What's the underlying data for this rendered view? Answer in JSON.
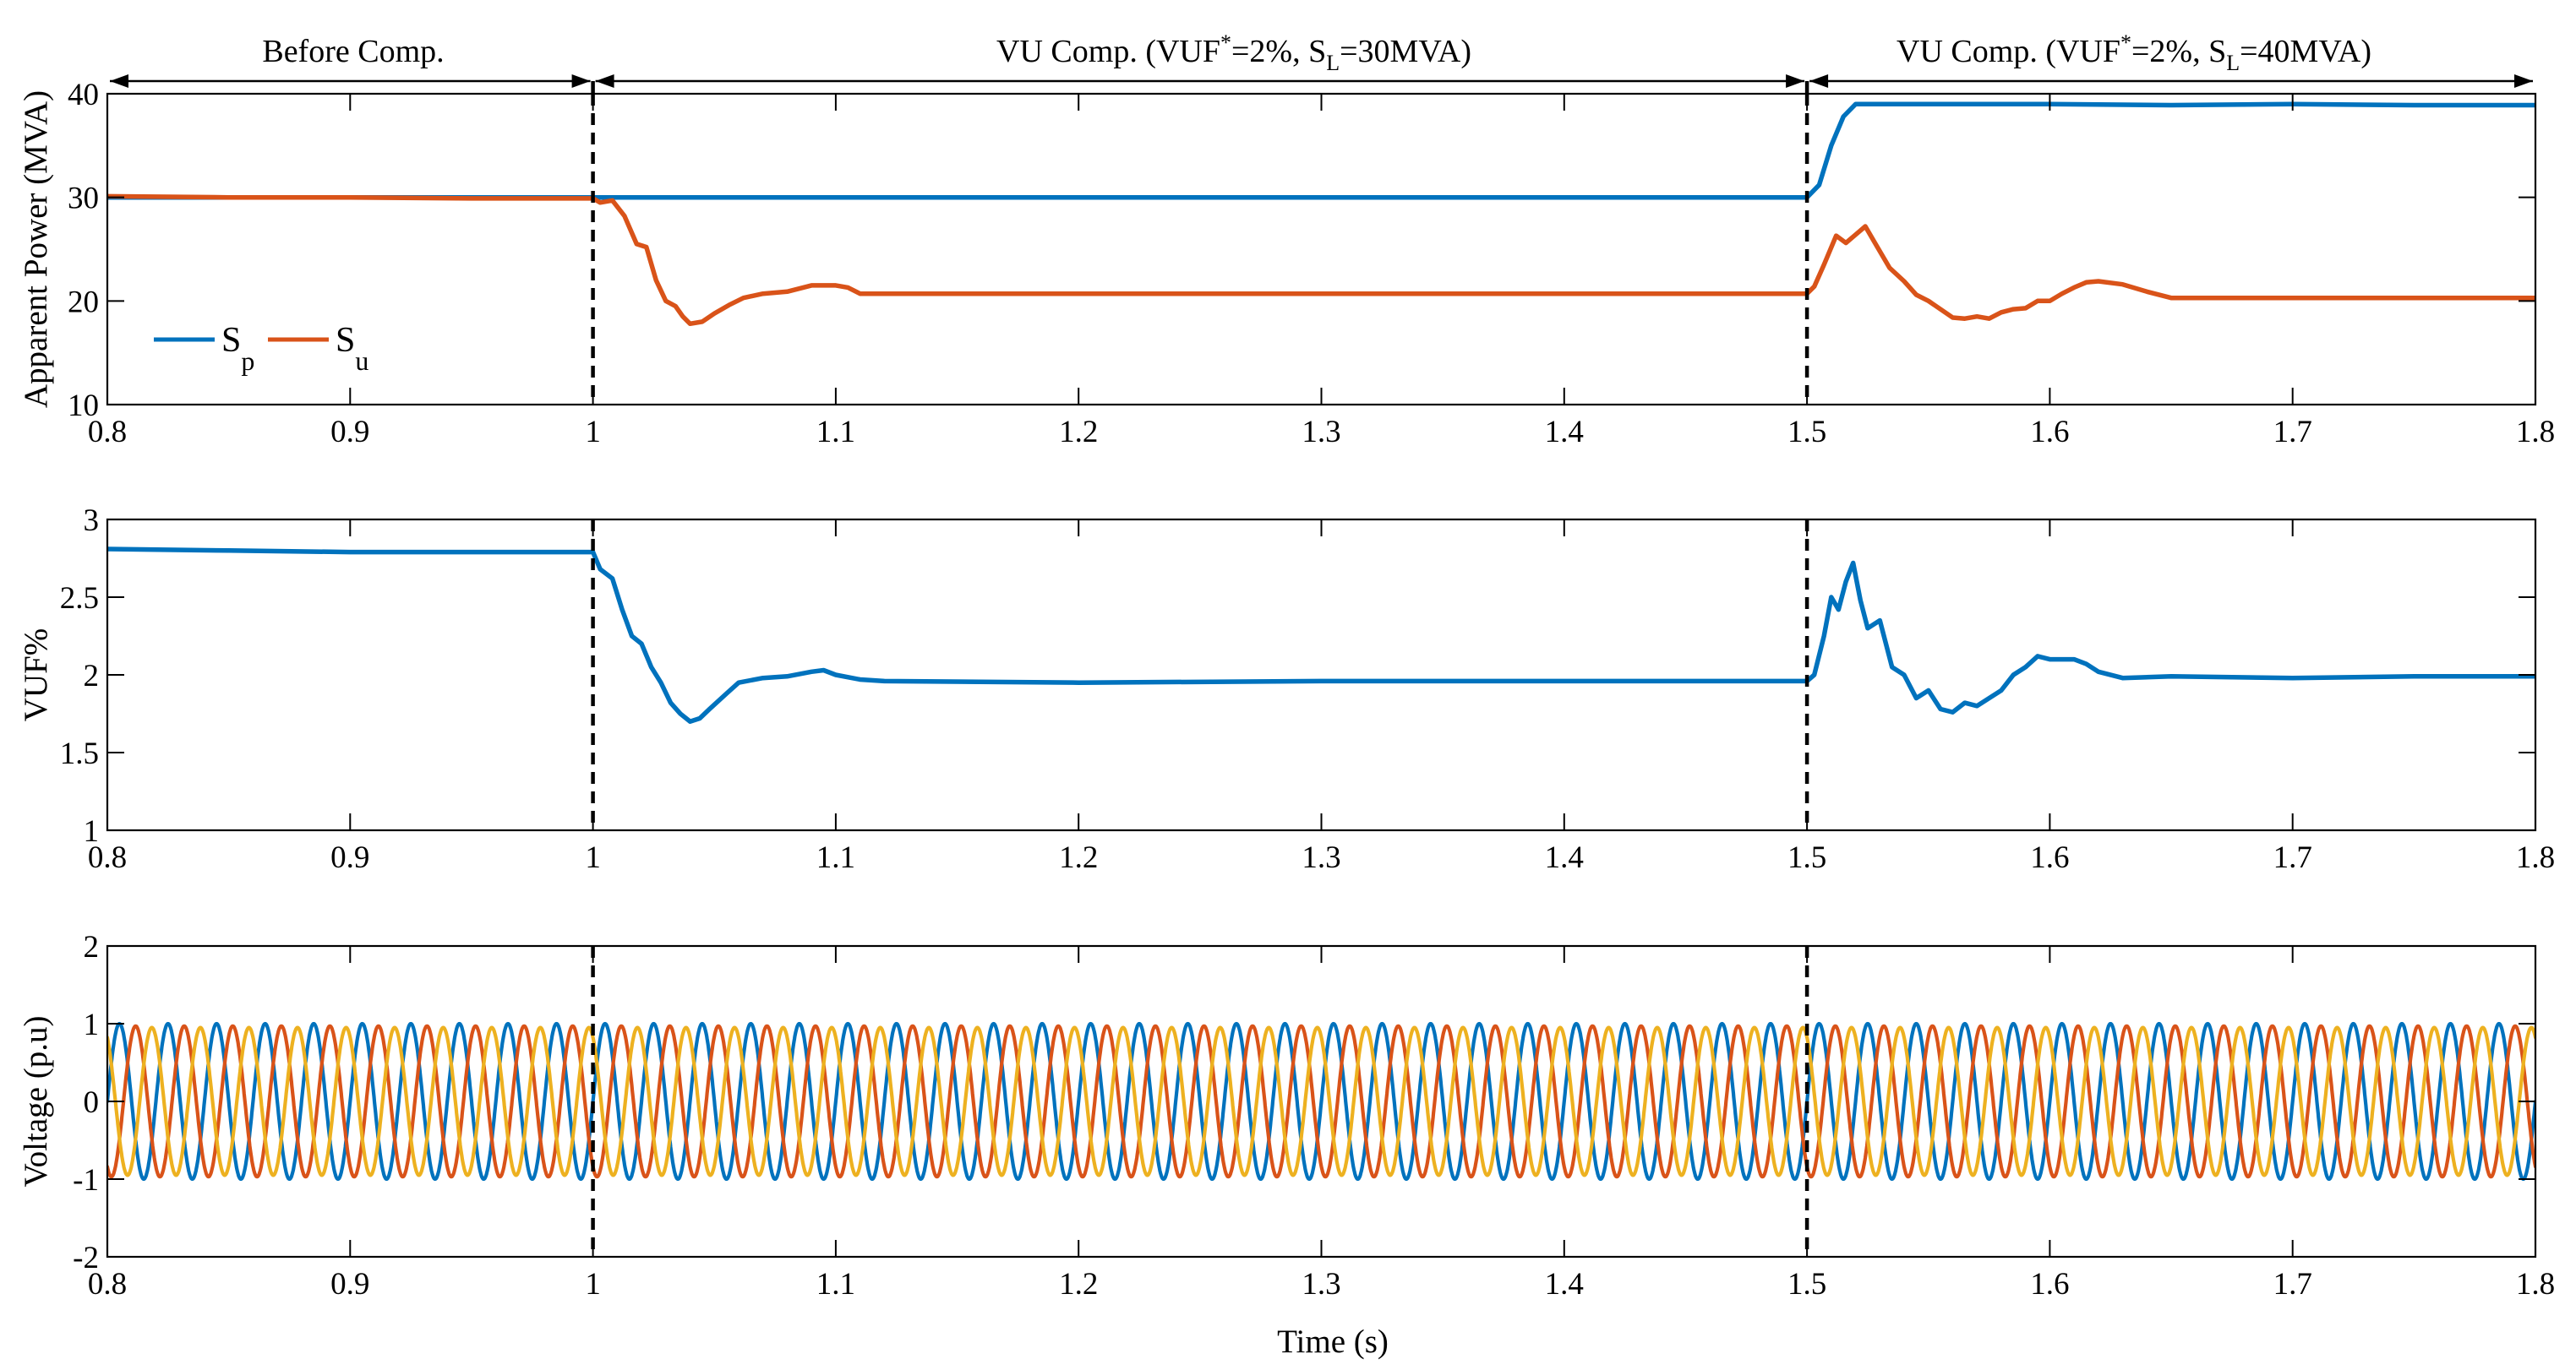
{
  "chart_data": {
    "type": "line",
    "colors": {
      "blue": "#0072BD",
      "orange": "#D95319",
      "yellow": "#EDB120"
    },
    "annotations": [
      {
        "text": "Before Comp.",
        "x_from": 0.8,
        "x_to": 1.0
      },
      {
        "text_prefix": "VU Comp. (VUF",
        "sup": "*",
        "text_mid": "=2%, S",
        "sub": "L",
        "text_suffix": "=30MVA)",
        "x_from": 1.0,
        "x_to": 1.5
      },
      {
        "text_prefix": "VU Comp. (VUF",
        "sup": "*",
        "text_mid": "=2%, S",
        "sub": "L",
        "text_suffix": "=40MVA)",
        "x_from": 1.5,
        "x_to": 1.8
      }
    ],
    "event_times": [
      1.0,
      1.5
    ],
    "xlabel": "Time (s)",
    "xlim": [
      0.8,
      1.8
    ],
    "xticks": [
      0.8,
      0.9,
      1,
      1.1,
      1.2,
      1.3,
      1.4,
      1.5,
      1.6,
      1.7,
      1.8
    ],
    "panels": [
      {
        "id": "apparent-power",
        "ylabel": "Apparent Power (MVA)",
        "ylim": [
          10,
          40
        ],
        "yticks": [
          10,
          20,
          30,
          40
        ],
        "legend": {
          "position": "bottom-left",
          "entries": [
            {
              "base": "S",
              "sub": "p",
              "color": "#0072BD"
            },
            {
              "base": "S",
              "sub": "u",
              "color": "#D95319"
            }
          ]
        },
        "series": [
          {
            "name": "Sp",
            "color": "#0072BD",
            "x": [
              0.8,
              1.0,
              1.5,
              1.505,
              1.51,
              1.515,
              1.52,
              1.55,
              1.6,
              1.65,
              1.7,
              1.75,
              1.8
            ],
            "y": [
              30.0,
              30.0,
              30.0,
              31.2,
              35.0,
              37.8,
              39.0,
              39.0,
              39.0,
              38.9,
              39.0,
              38.9,
              38.9
            ]
          },
          {
            "name": "Su",
            "color": "#D95319",
            "x": [
              0.8,
              0.85,
              0.9,
              0.95,
              1.0,
              1.003,
              1.008,
              1.013,
              1.018,
              1.022,
              1.026,
              1.03,
              1.034,
              1.037,
              1.04,
              1.045,
              1.05,
              1.056,
              1.062,
              1.07,
              1.08,
              1.09,
              1.1,
              1.105,
              1.11,
              1.2,
              1.3,
              1.4,
              1.5,
              1.503,
              1.507,
              1.512,
              1.516,
              1.52,
              1.524,
              1.528,
              1.534,
              1.54,
              1.545,
              1.55,
              1.555,
              1.56,
              1.565,
              1.57,
              1.575,
              1.58,
              1.585,
              1.59,
              1.595,
              1.6,
              1.605,
              1.61,
              1.615,
              1.62,
              1.63,
              1.64,
              1.65,
              1.7,
              1.75,
              1.8
            ],
            "y": [
              30.1,
              30.0,
              30.0,
              29.9,
              29.9,
              29.5,
              29.7,
              28.2,
              25.5,
              25.2,
              22.0,
              20.0,
              19.5,
              18.5,
              17.8,
              18.0,
              18.8,
              19.6,
              20.3,
              20.7,
              20.9,
              21.5,
              21.5,
              21.3,
              20.7,
              20.7,
              20.7,
              20.7,
              20.7,
              21.4,
              23.5,
              26.3,
              25.6,
              26.4,
              27.2,
              25.6,
              23.2,
              21.9,
              20.6,
              20.0,
              19.2,
              18.4,
              18.3,
              18.5,
              18.3,
              18.9,
              19.2,
              19.3,
              20.0,
              20.0,
              20.7,
              21.3,
              21.8,
              21.9,
              21.6,
              20.9,
              20.3,
              20.3,
              20.3,
              20.3
            ]
          }
        ]
      },
      {
        "id": "vuf",
        "ylabel": "VUF%",
        "ylim": [
          1,
          3
        ],
        "yticks": [
          1,
          1.5,
          2,
          2.5,
          3
        ],
        "series": [
          {
            "name": "VUF",
            "color": "#0072BD",
            "x": [
              0.8,
              0.85,
              0.9,
              0.95,
              1.0,
              1.003,
              1.008,
              1.012,
              1.016,
              1.02,
              1.024,
              1.028,
              1.032,
              1.036,
              1.04,
              1.044,
              1.048,
              1.055,
              1.06,
              1.07,
              1.08,
              1.09,
              1.095,
              1.1,
              1.11,
              1.12,
              1.2,
              1.3,
              1.4,
              1.5,
              1.503,
              1.507,
              1.51,
              1.513,
              1.516,
              1.519,
              1.522,
              1.525,
              1.53,
              1.535,
              1.54,
              1.545,
              1.55,
              1.555,
              1.56,
              1.565,
              1.57,
              1.58,
              1.585,
              1.59,
              1.595,
              1.6,
              1.605,
              1.61,
              1.615,
              1.62,
              1.63,
              1.65,
              1.7,
              1.75,
              1.8
            ],
            "y": [
              2.81,
              2.8,
              2.79,
              2.79,
              2.79,
              2.68,
              2.62,
              2.42,
              2.25,
              2.2,
              2.05,
              1.95,
              1.82,
              1.75,
              1.7,
              1.72,
              1.78,
              1.88,
              1.95,
              1.98,
              1.99,
              2.02,
              2.03,
              2.0,
              1.97,
              1.96,
              1.95,
              1.96,
              1.96,
              1.96,
              2.0,
              2.25,
              2.5,
              2.42,
              2.6,
              2.72,
              2.48,
              2.3,
              2.35,
              2.05,
              2.0,
              1.85,
              1.9,
              1.78,
              1.76,
              1.82,
              1.8,
              1.9,
              2.0,
              2.05,
              2.12,
              2.1,
              2.1,
              2.1,
              2.07,
              2.02,
              1.98,
              1.99,
              1.98,
              1.99,
              1.99
            ]
          }
        ]
      },
      {
        "id": "voltage",
        "ylabel": "Voltage (p.u)",
        "ylim": [
          -2,
          2
        ],
        "yticks": [
          -2,
          -1,
          0,
          1,
          2
        ],
        "waveform": {
          "frequency_hz": 50,
          "phases": [
            {
              "name": "phase-a",
              "color": "#0072BD",
              "amplitude": 1.0,
              "phase_deg": 0
            },
            {
              "name": "phase-b",
              "color": "#D95319",
              "amplitude": 0.97,
              "phase_deg": -120
            },
            {
              "name": "phase-c",
              "color": "#EDB120",
              "amplitude": 0.95,
              "phase_deg": 120
            }
          ]
        }
      }
    ]
  }
}
